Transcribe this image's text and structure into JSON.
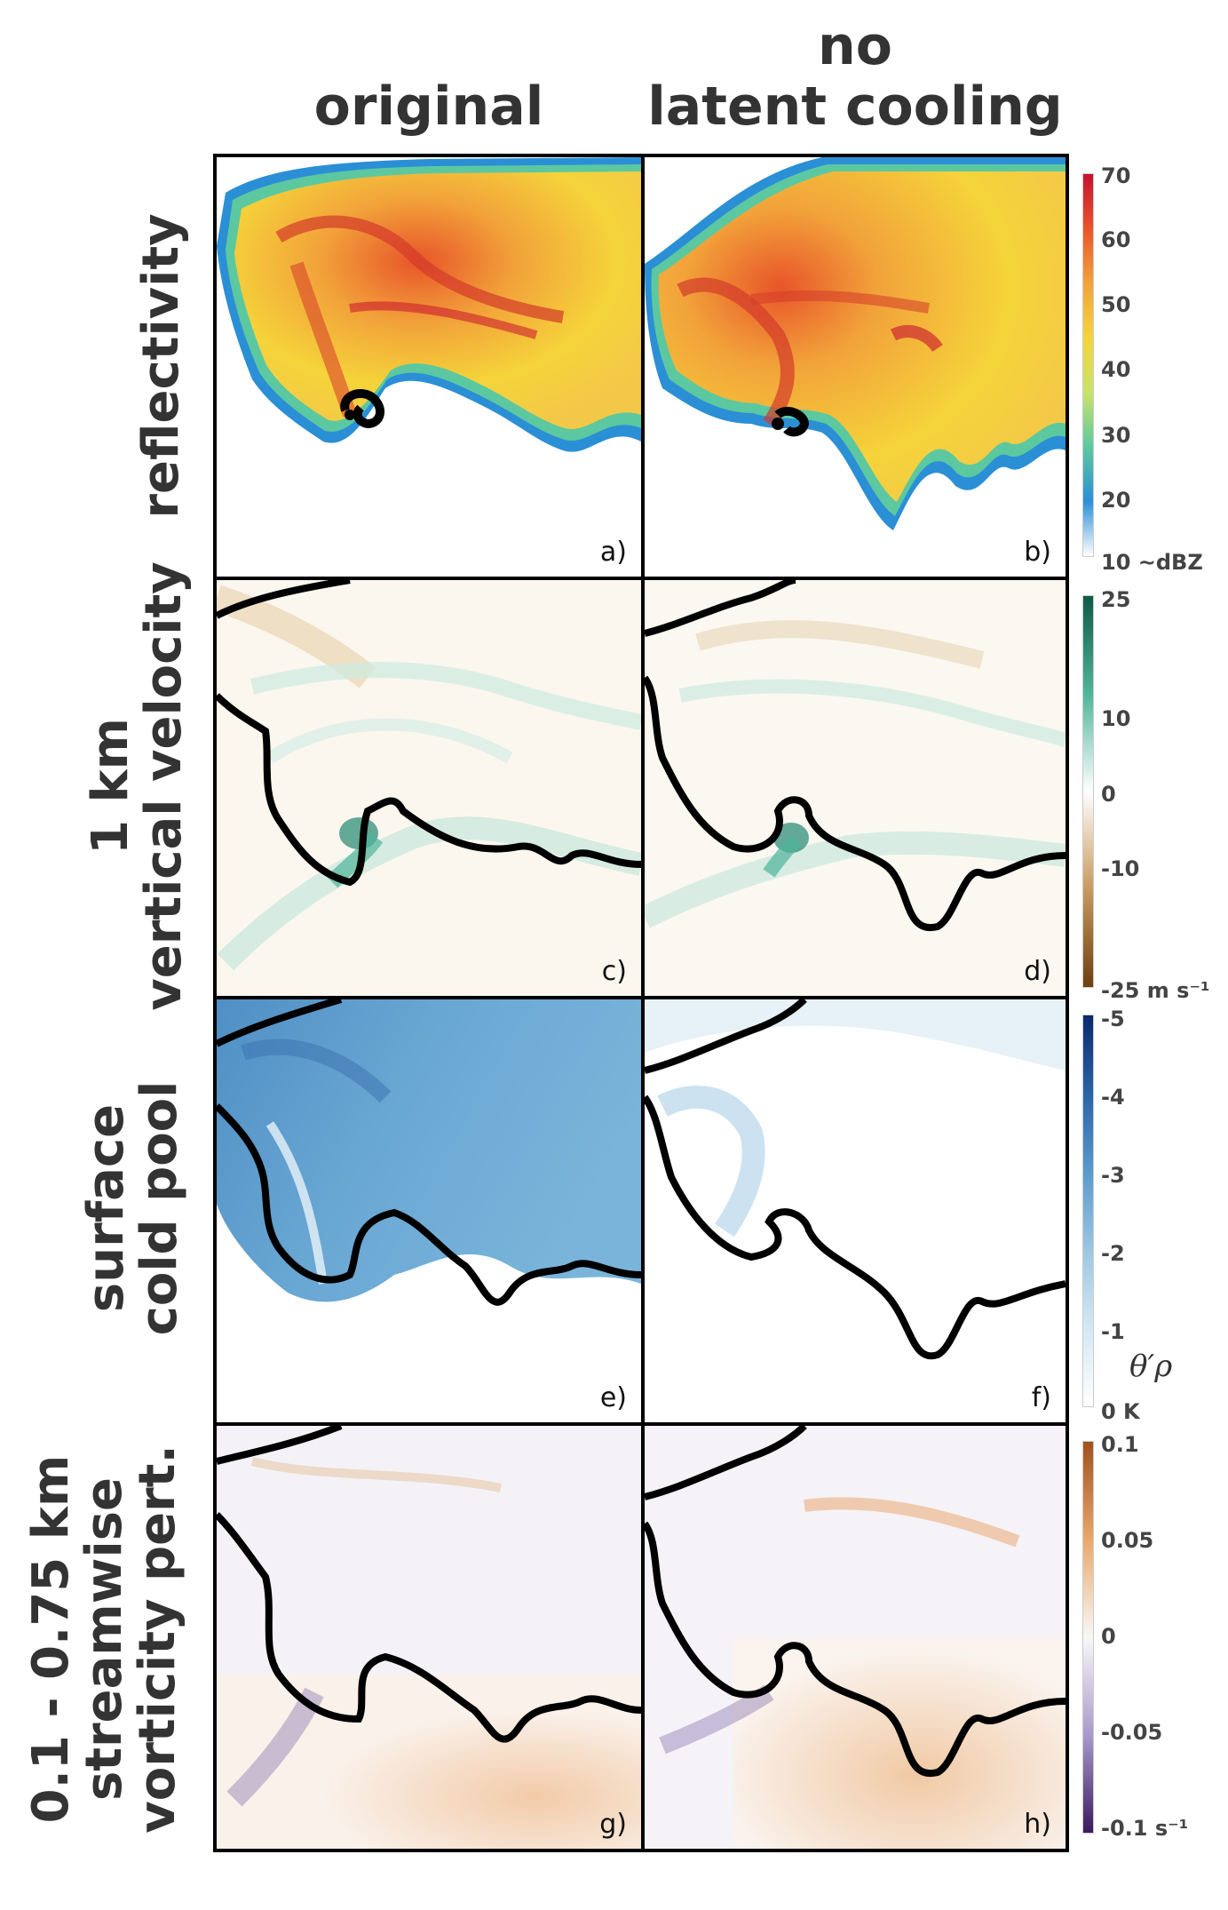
{
  "columns": {
    "original": "original",
    "no_latent_line1": "no",
    "no_latent_line2": "latent cooling"
  },
  "rows": {
    "reflectivity": "reflectivity",
    "vv_line1": "1 km",
    "vv_line2": "vertical velocity",
    "cp_line1": "surface",
    "cp_line2": "cold pool",
    "sv_line1": "0.1 - 0.75 km",
    "sv_line2": "streamwise",
    "sv_line3": "vorticity pert."
  },
  "panel_labels": [
    "a)",
    "b)",
    "c)",
    "d)",
    "e)",
    "f)",
    "g)",
    "h)"
  ],
  "colorbars": {
    "reflectivity": {
      "ticks": [
        "70",
        "60",
        "50",
        "40",
        "30",
        "20",
        "10 ~dBZ"
      ],
      "colors": [
        "#c8102e",
        "#e8552a",
        "#f2a33a",
        "#f5d43a",
        "#c9e36a",
        "#5cc8a0",
        "#2b8fd6",
        "#ffffff"
      ]
    },
    "vertical_velocity": {
      "ticks": [
        "25",
        "10",
        "0",
        "-10",
        "-25 m s⁻¹"
      ],
      "colors": [
        "#0f5a48",
        "#4fb59a",
        "#ffffff",
        "#c89a5e",
        "#6b3f10"
      ]
    },
    "cold_pool": {
      "ticks": [
        "-5",
        "-4",
        "-3",
        "-2",
        "-1",
        "0 K"
      ],
      "colors": [
        "#0b2a6b",
        "#2a63a8",
        "#5a9acb",
        "#9cc6e3",
        "#d4e8f4",
        "#ffffff"
      ],
      "symbol": "θ′ρ"
    },
    "vorticity": {
      "ticks": [
        "0.1",
        "0.05",
        "0",
        "-0.05",
        "-0.1 s⁻¹"
      ],
      "colors": [
        "#a0501e",
        "#e9a86a",
        "#f8f8f8",
        "#a99acb",
        "#3b1a5e"
      ]
    }
  }
}
